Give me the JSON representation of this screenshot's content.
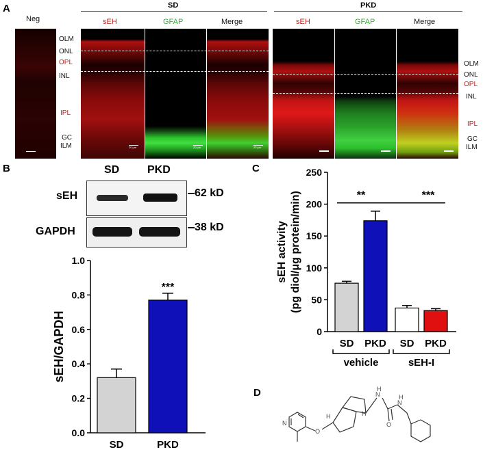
{
  "panels": {
    "A": "A",
    "B": "B",
    "C": "C",
    "D": "D"
  },
  "panel_a": {
    "neg_label": "Neg",
    "sd_label": "SD",
    "pkd_label": "PKD",
    "channels": [
      "sEH",
      "GFAP",
      "Merge"
    ],
    "sd_layers": [
      "OLM",
      "ONL",
      "OPL",
      "INL",
      "IPL",
      "GC",
      "ILM"
    ],
    "pkd_layers": [
      "OLM",
      "ONL",
      "OPL",
      "INL",
      "IPL",
      "GC",
      "ILM"
    ],
    "scale_text": "20 μm",
    "colors": {
      "seh": "#c0211d",
      "gfap": "#2fb32f",
      "layer_red": "#c0211d"
    }
  },
  "blot": {
    "lanes": [
      "SD",
      "PKD"
    ],
    "rows": [
      {
        "name": "sEH",
        "kd": "62 kD"
      },
      {
        "name": "GAPDH",
        "kd": "38 kD"
      }
    ]
  },
  "chart_data": [
    {
      "type": "bar",
      "categories": [
        "SD",
        "PKD"
      ],
      "values": [
        0.32,
        0.77
      ],
      "errors": [
        0.05,
        0.04
      ],
      "colors": [
        "#d3d3d3",
        "#1010b8"
      ],
      "ylabel": "sEH/GAPDH",
      "ylim": [
        0,
        1.0
      ],
      "yticks": [
        "0.0",
        "0.2",
        "0.4",
        "0.6",
        "0.8",
        "1.0"
      ],
      "annotation": "***"
    },
    {
      "type": "bar",
      "categories": [
        "SD",
        "PKD",
        "SD",
        "PKD"
      ],
      "values": [
        76,
        174,
        37,
        33
      ],
      "errors": [
        3,
        15,
        4,
        3
      ],
      "colors": [
        "#d3d3d3",
        "#1010b8",
        "#ffffff",
        "#e01010"
      ],
      "ylabel_line1": "sEH activity",
      "ylabel_line2": "(pg diol/μg protein/min)",
      "ylim": [
        0,
        250
      ],
      "yticks": [
        "0",
        "50",
        "100",
        "150",
        "200",
        "250"
      ],
      "groups": [
        "vehicle",
        "sEH-I"
      ],
      "annotations": [
        "**",
        "***"
      ]
    }
  ]
}
